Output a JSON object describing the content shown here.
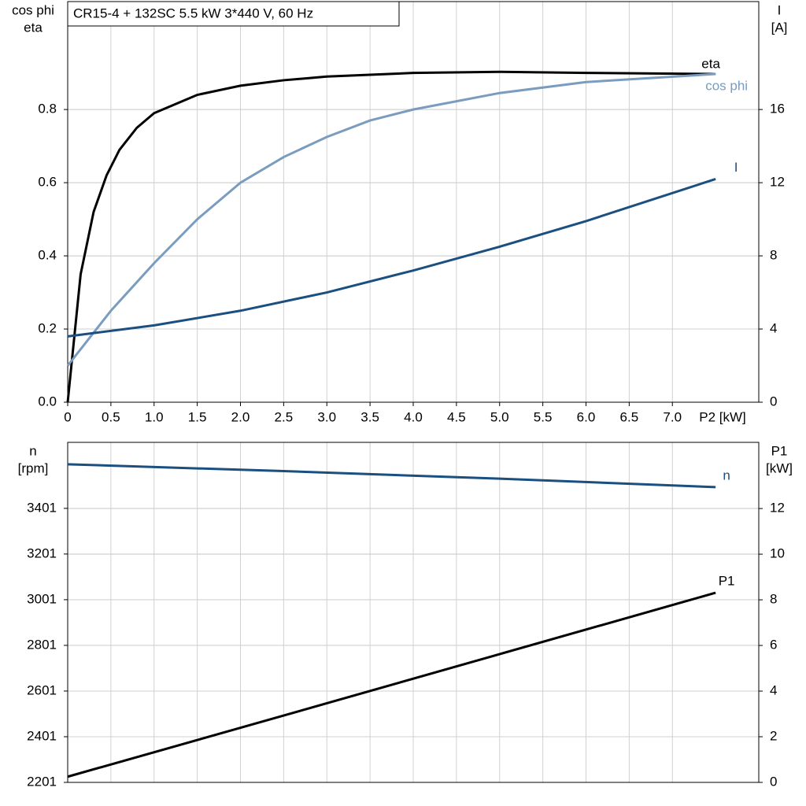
{
  "chart_data": [
    {
      "type": "line",
      "title": "CR15-4 + 132SC   5.5 kW   3*440 V, 60 Hz",
      "ylabel": [
        "cos phi",
        "eta"
      ],
      "y2label": [
        "I",
        "[A]"
      ],
      "xlabel": "P2 [kW]",
      "xlim": [
        0,
        8
      ],
      "ylim": [
        0,
        1.095
      ],
      "y2lim": [
        0,
        21.9
      ],
      "xticks": [
        0,
        0.5,
        {
          "value": 1,
          "label": "1.0"
        },
        1.5,
        {
          "value": 2,
          "label": "2.0"
        },
        2.5,
        {
          "value": 3,
          "label": "3.0"
        },
        3.5,
        {
          "value": 4,
          "label": "4.0"
        },
        4.5,
        {
          "value": 5,
          "label": "5.0"
        },
        5.5,
        {
          "value": 6,
          "label": "6.0"
        },
        6.5,
        {
          "value": 7,
          "label": "7.0"
        }
      ],
      "yticks": [
        {
          "value": 0,
          "label": "0.0"
        },
        0.2,
        0.4,
        0.6,
        0.8
      ],
      "y2ticks": [
        0,
        4,
        8,
        12,
        16
      ],
      "grid": true,
      "series": [
        {
          "name": "eta",
          "color": "#000000",
          "x": [
            0,
            0.15,
            0.3,
            0.45,
            0.6,
            0.8,
            1,
            1.5,
            2,
            2.5,
            3,
            4,
            5,
            6,
            7.5
          ],
          "values": [
            0,
            0.35,
            0.52,
            0.62,
            0.69,
            0.75,
            0.79,
            0.84,
            0.865,
            0.88,
            0.89,
            0.9,
            0.903,
            0.9,
            0.897
          ]
        },
        {
          "name": "cos phi",
          "color": "#7a9cbf",
          "x": [
            0,
            0.5,
            1,
            1.5,
            2,
            2.5,
            3,
            3.5,
            4,
            5,
            6,
            7.5
          ],
          "values": [
            0.1,
            0.25,
            0.38,
            0.5,
            0.6,
            0.67,
            0.725,
            0.77,
            0.8,
            0.845,
            0.875,
            0.897
          ]
        },
        {
          "name": "I",
          "color": "#1a4f80",
          "axis": "y2",
          "x": [
            0,
            1,
            2,
            3,
            4,
            5,
            6,
            7.5
          ],
          "values": [
            3.6,
            4.2,
            5.0,
            6.0,
            7.2,
            8.5,
            9.9,
            12.2
          ]
        }
      ]
    },
    {
      "type": "line",
      "ylabel": [
        "n",
        "[rpm]"
      ],
      "y2label": [
        "P1",
        "[kW]"
      ],
      "xlim": [
        0,
        8
      ],
      "ylim": [
        2201,
        3690
      ],
      "y2lim": [
        0,
        14.9
      ],
      "yticks": [
        2201,
        2401,
        2601,
        2801,
        3001,
        3201,
        3401
      ],
      "y2ticks": [
        0,
        2,
        4,
        6,
        8,
        10,
        12
      ],
      "grid": true,
      "series": [
        {
          "name": "n",
          "color": "#1a4f80",
          "x": [
            0,
            2.5,
            5,
            7.5
          ],
          "values": [
            3594,
            3564,
            3531,
            3494
          ]
        },
        {
          "name": "P1",
          "color": "#000000",
          "axis": "y2",
          "x": [
            0,
            2.5,
            5,
            7.5
          ],
          "values": [
            0.25,
            2.93,
            5.62,
            8.31
          ]
        }
      ]
    }
  ]
}
